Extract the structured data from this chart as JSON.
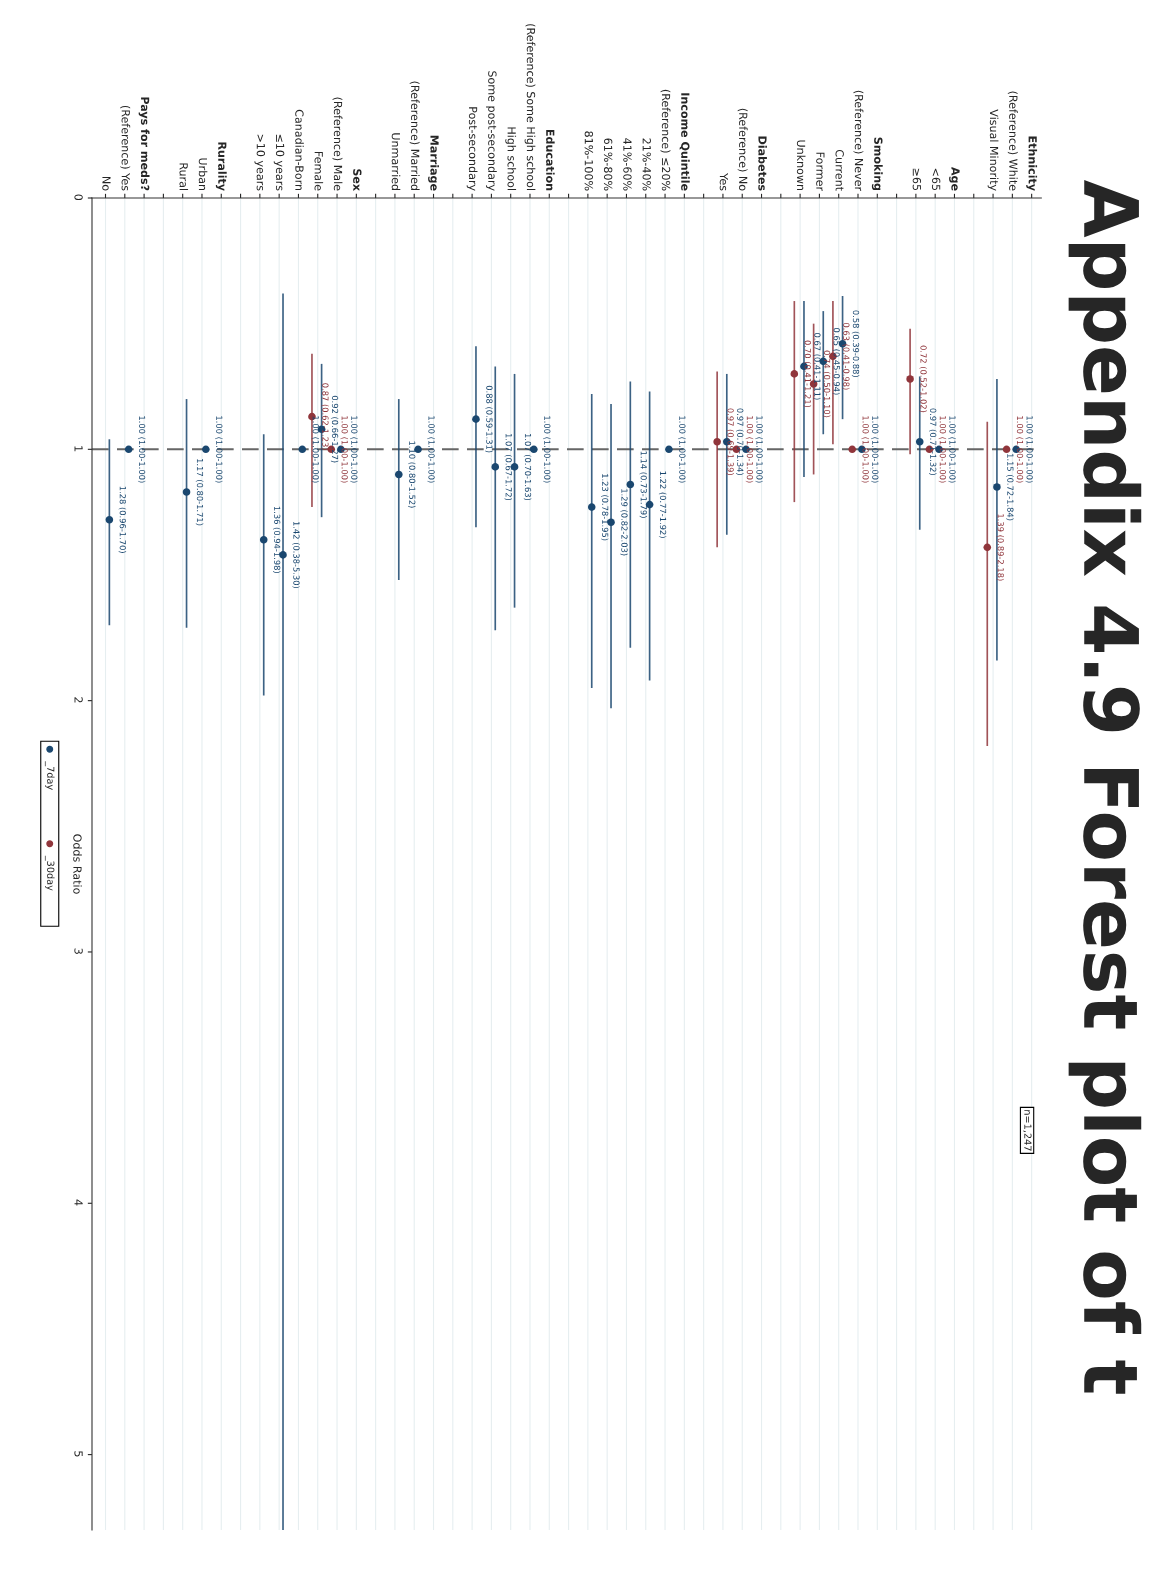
{
  "chart_data": {
    "type": "scatter",
    "title": "Appendix 4.9 Forest plot of t",
    "ylabel": "Odds Ratio",
    "categories": [
      "No",
      "(Reference) Yes",
      "Pays for meds?",
      null,
      "Rural",
      "Urban",
      "Rurality",
      null,
      ">10 years",
      "≤10 years",
      "Canadian-Born",
      "Female",
      "(Reference) Male",
      "Sex",
      null,
      "Unmarried",
      "(Reference) Married",
      "Marriage",
      null,
      "Post-secondary",
      "Some post-secondary",
      "High school",
      "(Reference) Some High school",
      "Education",
      null,
      "81%-100%",
      "61%-80%",
      "41%-60%",
      "21%-40%",
      "(Reference) ≤20%",
      "Income Quintile",
      null,
      "Yes",
      "(Reference) No",
      "Diabetes",
      null,
      "Unknown",
      "Former",
      "Current",
      "(Reference) Never",
      "Smoking",
      null,
      "≥65",
      "<65",
      "Age",
      null,
      "Visual Minority",
      "(Reference) White",
      "Ethnicity"
    ],
    "series": [
      {
        "name": "_7day",
        "color": "#1a476f",
        "values": [
          1.28,
          1.0,
          null,
          null,
          1.17,
          1.0,
          null,
          null,
          1.36,
          1.42,
          1.0,
          0.92,
          1.0,
          null,
          null,
          1.1,
          1.0,
          null,
          null,
          0.88,
          1.07,
          1.07,
          1.0,
          null,
          null,
          1.23,
          1.29,
          1.14,
          1.22,
          1.0,
          null,
          null,
          0.97,
          1.0,
          null,
          null,
          0.67,
          0.65,
          0.58,
          1.0,
          null,
          null,
          0.97,
          1.0,
          null,
          null,
          1.15,
          1.0,
          null
        ],
        "errors": [
          [
            0.96,
            1.7
          ],
          [
            1.0,
            1.0
          ],
          null,
          null,
          [
            0.8,
            1.71
          ],
          [
            1.0,
            1.0
          ],
          null,
          null,
          [
            0.94,
            1.98
          ],
          [
            0.38,
            5.3
          ],
          [
            1.0,
            1.0
          ],
          [
            0.66,
            1.27
          ],
          [
            1.0,
            1.0
          ],
          null,
          null,
          [
            0.8,
            1.52
          ],
          [
            1.0,
            1.0
          ],
          null,
          null,
          [
            0.59,
            1.31
          ],
          [
            0.67,
            1.72
          ],
          [
            0.7,
            1.63
          ],
          [
            1.0,
            1.0
          ],
          null,
          null,
          [
            0.78,
            1.95
          ],
          [
            0.82,
            2.03
          ],
          [
            0.73,
            1.79
          ],
          [
            0.77,
            1.92
          ],
          [
            1.0,
            1.0
          ],
          null,
          null,
          [
            0.7,
            1.34
          ],
          [
            1.0,
            1.0
          ],
          null,
          null,
          [
            0.41,
            1.11
          ],
          [
            0.45,
            0.94
          ],
          [
            0.39,
            0.88
          ],
          [
            1.0,
            1.0
          ],
          null,
          null,
          [
            0.71,
            1.32
          ],
          [
            1.0,
            1.0
          ],
          null,
          null,
          [
            0.72,
            1.84
          ],
          [
            1.0,
            1.0
          ],
          null
        ],
        "value_labels": [
          "1.28 (0.96-1.70)",
          "1.00 (1.00-1.00)",
          null,
          null,
          "1.17 (0.80-1.71)",
          "1.00 (1.00-1.00)",
          null,
          null,
          "1.36 (0.94-1.98)",
          "1.42 (0.38-5.30)",
          "1.00 (1.00-1.00)",
          "0.92 (0.66-1.27)",
          "1.00 (1.00-1.00)",
          null,
          null,
          "1.10 (0.80-1.52)",
          "1.00 (1.00-1.00)",
          null,
          null,
          "0.88 (0.59-1.31)",
          "1.07 (0.67-1.72)",
          "1.07 (0.70-1.63)",
          "1.00 (1.00-1.00)",
          null,
          null,
          "1.23 (0.78-1.95)",
          "1.29 (0.82-2.03)",
          "1.14 (0.73-1.79)",
          "1.22 (0.77-1.92)",
          "1.00 (1.00-1.00)",
          null,
          null,
          "0.97 (0.70-1.34)",
          "1.00 (1.00-1.00)",
          null,
          null,
          "0.67 (0.41-1.11)",
          "0.65 (0.45-0.94)",
          "0.58 (0.39-0.88)",
          "1.00 (1.00-1.00)",
          null,
          null,
          "0.97 (0.71-1.32)",
          "1.00 (1.00-1.00)",
          null,
          null,
          "1.15 (0.72-1.84)",
          "1.00 (1.00-1.00)",
          null
        ]
      },
      {
        "name": "_30day",
        "color": "#90353b",
        "values": [
          null,
          null,
          null,
          null,
          null,
          null,
          null,
          null,
          null,
          null,
          null,
          0.87,
          1.0,
          null,
          null,
          null,
          null,
          null,
          null,
          null,
          null,
          null,
          null,
          null,
          null,
          null,
          null,
          null,
          null,
          null,
          null,
          null,
          0.97,
          1.0,
          null,
          null,
          0.7,
          0.74,
          0.63,
          1.0,
          null,
          null,
          0.72,
          1.0,
          null,
          null,
          1.39,
          1.0,
          null
        ],
        "errors": [
          null,
          null,
          null,
          null,
          null,
          null,
          null,
          null,
          null,
          null,
          null,
          [
            0.62,
            1.23
          ],
          [
            1.0,
            1.0
          ],
          null,
          null,
          null,
          null,
          null,
          null,
          null,
          null,
          null,
          null,
          null,
          null,
          null,
          null,
          null,
          null,
          null,
          null,
          null,
          [
            0.69,
            1.39
          ],
          [
            1.0,
            1.0
          ],
          null,
          null,
          [
            0.41,
            1.21
          ],
          [
            0.5,
            1.1
          ],
          [
            0.41,
            0.98
          ],
          [
            1.0,
            1.0
          ],
          null,
          null,
          [
            0.52,
            1.02
          ],
          [
            1.0,
            1.0
          ],
          null,
          null,
          [
            0.89,
            2.18
          ],
          [
            1.0,
            1.0
          ],
          null
        ],
        "value_labels": [
          null,
          null,
          null,
          null,
          null,
          null,
          null,
          null,
          null,
          null,
          null,
          "0.87 (0.62-1.23)",
          "1.00 (1.00-1.00)",
          null,
          null,
          null,
          null,
          null,
          null,
          null,
          null,
          null,
          null,
          null,
          null,
          null,
          null,
          null,
          null,
          null,
          null,
          null,
          "0.97 (0.69-1.39)",
          "1.00 (1.00-1.00)",
          null,
          null,
          "0.70 (0.41-1.21)",
          "0.74 (0.50-1.10)",
          "0.63 (0.41-0.98)",
          "1.00 (1.00-1.00)",
          null,
          null,
          "0.72 (0.52-1.02)",
          "1.00 (1.00-1.00)",
          null,
          null,
          "1.39 (0.89-2.18)",
          "1.00 (1.00-1.00)",
          null
        ]
      }
    ],
    "ylim": [
      5.3,
      0
    ],
    "yticks": [
      0,
      1,
      2,
      3,
      4,
      5
    ],
    "ref_lines": [
      {
        "axis": "y",
        "value": 1,
        "color": "#666666",
        "line_style": "dashed"
      }
    ],
    "annotations": [
      "n=1,247"
    ],
    "grid": "x",
    "legend": "left",
    "marker": "circle"
  }
}
